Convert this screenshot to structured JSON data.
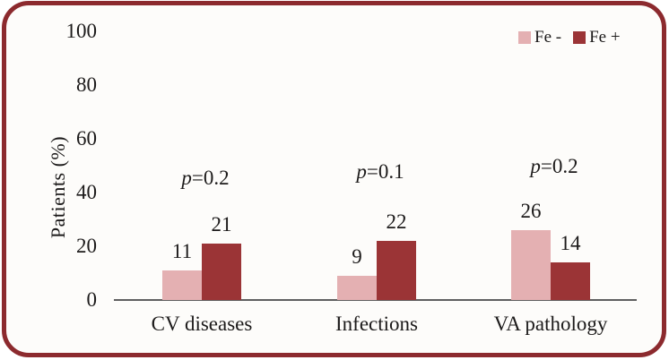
{
  "figure": {
    "border_color": "#8C2A2E",
    "background_color": "#FDFCFA",
    "axis_color": "#5F5F5F",
    "text_color": "#1c1a1a"
  },
  "chart_data": {
    "type": "bar",
    "title": "",
    "xlabel": "",
    "ylabel": "Patients (%)",
    "ylim": [
      0,
      100
    ],
    "yticks": [
      0,
      20,
      40,
      60,
      80,
      100
    ],
    "grid": false,
    "legend_position": "top-right",
    "categories": [
      "CV diseases",
      "Infections",
      "VA pathology"
    ],
    "series": [
      {
        "name": "Fe -",
        "color": "#E4B0B2",
        "values": [
          11,
          9,
          26
        ]
      },
      {
        "name": "Fe +",
        "color": "#9B3436",
        "values": [
          21,
          22,
          14
        ]
      }
    ],
    "annotations": [
      "p=0.2",
      "p=0.1",
      "p=0.2"
    ]
  }
}
